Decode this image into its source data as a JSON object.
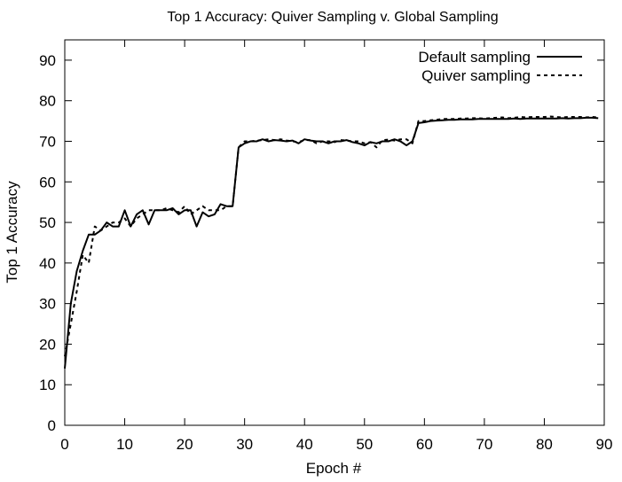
{
  "chart_data": {
    "type": "line",
    "title": "Top 1 Accuracy: Quiver Sampling v. Global Sampling",
    "xlabel": "Epoch #",
    "ylabel": "Top 1 Accuracy",
    "xlim": [
      0,
      90
    ],
    "ylim": [
      0,
      95
    ],
    "xticks": [
      0,
      10,
      20,
      30,
      40,
      50,
      60,
      70,
      80,
      90
    ],
    "yticks": [
      0,
      10,
      20,
      30,
      40,
      50,
      60,
      70,
      80,
      90
    ],
    "grid": false,
    "legend_position": "top-right",
    "series": [
      {
        "name": "Default sampling",
        "style": "solid",
        "color": "#000000",
        "x": [
          0,
          1,
          2,
          3,
          4,
          5,
          6,
          7,
          8,
          9,
          10,
          11,
          12,
          13,
          14,
          15,
          16,
          17,
          18,
          19,
          20,
          21,
          22,
          23,
          24,
          25,
          26,
          27,
          28,
          29,
          30,
          31,
          32,
          33,
          34,
          35,
          36,
          37,
          38,
          39,
          40,
          41,
          42,
          43,
          44,
          45,
          46,
          47,
          48,
          49,
          50,
          51,
          52,
          53,
          54,
          55,
          56,
          57,
          58,
          59,
          60,
          61,
          62,
          63,
          64,
          65,
          66,
          67,
          68,
          69,
          70,
          71,
          72,
          73,
          74,
          75,
          76,
          77,
          78,
          79,
          80,
          81,
          82,
          83,
          84,
          85,
          86,
          87,
          88,
          89
        ],
        "values": [
          14,
          30,
          38,
          43,
          47,
          47,
          48,
          50,
          49,
          49,
          53,
          49,
          52,
          53,
          49.5,
          53,
          53,
          53,
          53.5,
          52,
          53,
          53,
          49,
          52.5,
          51.5,
          52,
          54.5,
          54,
          54,
          68.5,
          69.5,
          70,
          70,
          70.5,
          70,
          70.3,
          70.2,
          70,
          70.2,
          69.5,
          70.5,
          70.2,
          70,
          70,
          69.5,
          70,
          70,
          70.3,
          69.8,
          69.5,
          69,
          69.8,
          69.5,
          70,
          70,
          70.5,
          70,
          69,
          70,
          74.5,
          74.7,
          75,
          75.1,
          75.2,
          75.3,
          75.3,
          75.4,
          75.4,
          75.4,
          75.5,
          75.5,
          75.5,
          75.5,
          75.5,
          75.5,
          75.6,
          75.5,
          75.6,
          75.6,
          75.6,
          75.6,
          75.6,
          75.6,
          75.7,
          75.6,
          75.7,
          75.7,
          75.8,
          75.8,
          75.7
        ]
      },
      {
        "name": "Quiver sampling",
        "style": "dotted",
        "color": "#000000",
        "x": [
          0,
          1,
          2,
          3,
          4,
          5,
          6,
          7,
          8,
          9,
          10,
          11,
          12,
          13,
          14,
          15,
          16,
          17,
          18,
          19,
          20,
          21,
          22,
          23,
          24,
          25,
          26,
          27,
          28,
          29,
          30,
          31,
          32,
          33,
          34,
          35,
          36,
          37,
          38,
          39,
          40,
          41,
          42,
          43,
          44,
          45,
          46,
          47,
          48,
          49,
          50,
          51,
          52,
          53,
          54,
          55,
          56,
          57,
          58,
          59,
          60,
          61,
          62,
          63,
          64,
          65,
          66,
          67,
          68,
          69,
          70,
          71,
          72,
          73,
          74,
          75,
          76,
          77,
          78,
          79,
          80,
          81,
          82,
          83,
          84,
          85,
          86,
          87,
          88,
          89
        ],
        "values": [
          17,
          25,
          33,
          42,
          40,
          49,
          48,
          49,
          50,
          50,
          51,
          49,
          51,
          52,
          53,
          53,
          53,
          53.5,
          53,
          52.5,
          54,
          52,
          53,
          54,
          53,
          53,
          53,
          54,
          54,
          68.5,
          70,
          70,
          70.2,
          70.3,
          70.5,
          70.3,
          70.5,
          70.2,
          70,
          69.8,
          70.3,
          70.3,
          69.5,
          70,
          70,
          69.8,
          70.3,
          70.2,
          70,
          70,
          69.5,
          69.8,
          68.5,
          70.3,
          70.4,
          70.2,
          70.5,
          70.5,
          69.5,
          75,
          75,
          75.2,
          75.3,
          75.5,
          75.5,
          75.5,
          75.6,
          75.6,
          75.7,
          75.7,
          75.6,
          75.7,
          75.8,
          75.9,
          75.7,
          75.8,
          76,
          75.9,
          76,
          76,
          76,
          76.1,
          76,
          75.9,
          76,
          76,
          76,
          75.9,
          76,
          75.9
        ]
      }
    ]
  }
}
